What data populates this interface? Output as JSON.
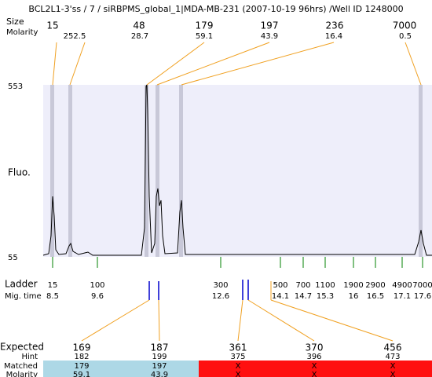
{
  "header": {
    "title": "BCL2L1-3'ss / 7 / siRBPMS_global_1|MDA-MB-231 (2007-10-19 96hrs) /Well ID 1248000"
  },
  "peaks": {
    "size_label": "Size",
    "molarity_label": "Molarity",
    "sizes": [
      "15",
      "48",
      "179",
      "197",
      "236",
      "7000"
    ],
    "molarities": [
      "252.5",
      "28.7",
      "59.1",
      "43.9",
      "16.4",
      "0.5"
    ]
  },
  "plot": {
    "y_top": "553",
    "y_bottom": "55",
    "y_label": "Fluo."
  },
  "ladder": {
    "label": "Ladder",
    "time_label": "Mig. time",
    "sizes": [
      "15",
      "100",
      "300",
      "500",
      "700",
      "1100",
      "1900",
      "2900",
      "4900",
      "7000"
    ],
    "times": [
      "8.5",
      "9.6",
      "12.6",
      "14.1",
      "14.7",
      "15.3",
      "16",
      "16.5",
      "17.1",
      "17.6"
    ]
  },
  "expected": {
    "label": "Expected",
    "hint_label": "Hint",
    "matched_label": "Matched",
    "molarity_label": "Molarity",
    "values": [
      "169",
      "187",
      "361",
      "370",
      "456"
    ],
    "hints": [
      "182",
      "199",
      "375",
      "396",
      "473"
    ],
    "matched": [
      "179",
      "197",
      "X",
      "X",
      "X"
    ],
    "molarity": [
      "59.1",
      "43.9",
      "X",
      "X",
      "X"
    ]
  }
}
